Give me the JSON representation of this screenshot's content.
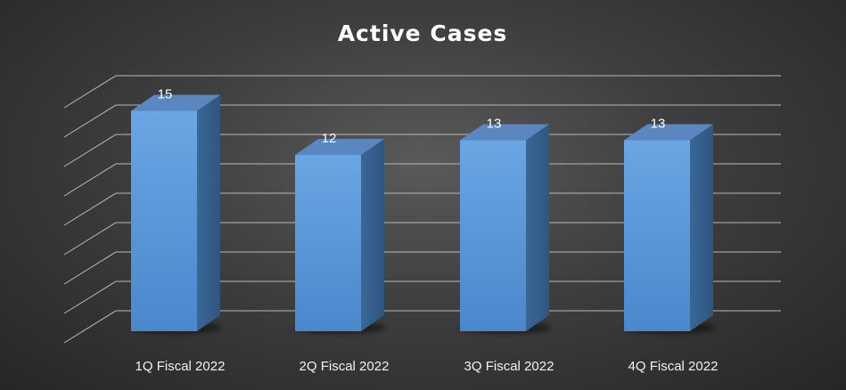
{
  "chart_data": {
    "type": "bar",
    "title": "Active Cases",
    "xlabel": "",
    "ylabel": "",
    "categories": [
      "1Q Fiscal 2022",
      "2Q Fiscal 2022",
      "3Q Fiscal 2022",
      "4Q Fiscal 2022"
    ],
    "series": [
      {
        "values": [
          15,
          12,
          13,
          13
        ],
        "color": "#5b9bd5"
      }
    ],
    "data_labels": [
      "15",
      "12",
      "13",
      "13"
    ],
    "ylim": [
      0,
      16
    ],
    "grid": true,
    "legend": "none",
    "style": "3d-column"
  },
  "colors": {
    "background": "#3f3f3f",
    "bar_front": "#5b9bd5",
    "grid": "#b9b9b9",
    "text": "#ffffff"
  }
}
